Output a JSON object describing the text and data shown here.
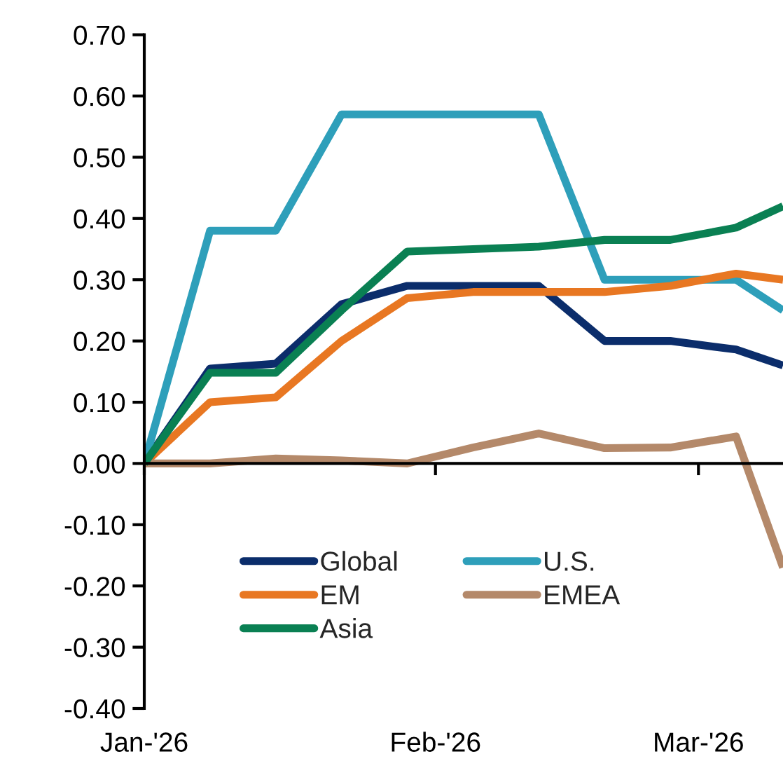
{
  "chart_data": {
    "type": "line",
    "x": [
      "2026-01-01",
      "2026-01-08",
      "2026-01-15",
      "2026-01-22",
      "2026-01-29",
      "2026-02-05",
      "2026-02-12",
      "2026-02-19",
      "2026-02-26",
      "2026-03-05",
      "2026-03-10"
    ],
    "series": [
      {
        "name": "Global",
        "color": "#0b2d6b",
        "values": [
          0,
          0.155,
          0.163,
          0.26,
          0.29,
          0.29,
          0.29,
          0.2,
          0.2,
          0.186,
          0.16
        ]
      },
      {
        "name": "U.S.",
        "color": "#2e9fba",
        "values": [
          0,
          0.38,
          0.38,
          0.57,
          0.57,
          0.57,
          0.57,
          0.3,
          0.3,
          0.3,
          0.25
        ]
      },
      {
        "name": "EM",
        "color": "#e87722",
        "values": [
          0,
          0.1,
          0.108,
          0.2,
          0.27,
          0.28,
          0.28,
          0.28,
          0.29,
          0.31,
          0.3
        ]
      },
      {
        "name": "EMEA",
        "color": "#b4896a",
        "values": [
          0,
          0,
          0.008,
          0.005,
          0,
          0.026,
          0.049,
          0.025,
          0.026,
          0.044,
          -0.17
        ]
      },
      {
        "name": "Asia",
        "color": "#0a8053",
        "values": [
          0,
          0.148,
          0.148,
          0.25,
          0.346,
          0.35,
          0.354,
          0.365,
          0.365,
          0.385,
          0.42
        ]
      }
    ],
    "xlim": [
      "2026-01-01",
      "2026-03-10"
    ],
    "xticks": [
      {
        "value": "2026-01-01",
        "label": "Jan-'26"
      },
      {
        "value": "2026-02-01",
        "label": "Feb-'26"
      },
      {
        "value": "2026-03-01",
        "label": "Mar-'26"
      }
    ],
    "ylim": [
      -0.4,
      0.7
    ],
    "yticks": [
      {
        "value": -0.4,
        "label": "-0.40"
      },
      {
        "value": -0.3,
        "label": "-0.30"
      },
      {
        "value": -0.2,
        "label": "-0.20"
      },
      {
        "value": -0.1,
        "label": "-0.10"
      },
      {
        "value": 0,
        "label": "0.00"
      },
      {
        "value": 0.1,
        "label": "0.10"
      },
      {
        "value": 0.2,
        "label": "0.20"
      },
      {
        "value": 0.3,
        "label": "0.30"
      },
      {
        "value": 0.4,
        "label": "0.40"
      },
      {
        "value": 0.5,
        "label": "0.50"
      },
      {
        "value": 0.6,
        "label": "0.60"
      },
      {
        "value": 0.7,
        "label": "0.70"
      }
    ],
    "legend": "bottom",
    "line_style": "solid",
    "marker": "none"
  }
}
